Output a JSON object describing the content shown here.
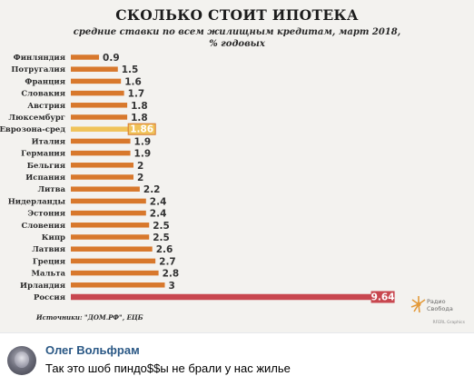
{
  "chart_data": {
    "type": "bar",
    "orientation": "horizontal",
    "title": "СКОЛЬКО СТОИТ ИПОТЕКА",
    "subtitle_line1": "средние ставки по всем жилищным кредитам, март 2018,",
    "subtitle_line2": "% годовых",
    "categories": [
      "Финляндия",
      "Потругалия",
      "Франция",
      "Словакия",
      "Австрия",
      "Люксембург",
      "Еврозона-сред",
      "Италия",
      "Германия",
      "Бельгия",
      "Испания",
      "Литва",
      "Нидерланды",
      "Эстония",
      "Словения",
      "Кипр",
      "Латвия",
      "Греция",
      "Мальта",
      "Ирландия",
      "Россия"
    ],
    "values": [
      0.9,
      1.5,
      1.6,
      1.7,
      1.8,
      1.8,
      1.86,
      1.9,
      1.9,
      2,
      2,
      2.2,
      2.4,
      2.4,
      2.5,
      2.5,
      2.6,
      2.7,
      2.8,
      3,
      9.64
    ],
    "value_labels": [
      "0.9",
      "1.5",
      "1.6",
      "1.7",
      "1.8",
      "1.8",
      "1.86",
      "1.9",
      "1.9",
      "2",
      "2",
      "2.2",
      "2.4",
      "2.4",
      "2.5",
      "2.5",
      "2.6",
      "2.7",
      "2.8",
      "3",
      "9.64"
    ],
    "highlight": {
      "Еврозона-сред": "#f0c35a",
      "Россия": "#c8474f"
    },
    "bar_color": "#d8782c",
    "source": "Источники: \"ДОМ.РФ\", ЕЦБ",
    "xlim": [
      0,
      10
    ],
    "grid": false,
    "legend": "none"
  },
  "logo": {
    "line1": "Радио",
    "line2": "Свобода"
  },
  "credit": "RFERL Graphics",
  "comment": {
    "author": "Олег Вольфрам",
    "text": "Так это шоб пиндо$$ы не брали у нас жилье"
  },
  "colors": {
    "link": "#2a5885",
    "panel": "#f3f2ef"
  }
}
